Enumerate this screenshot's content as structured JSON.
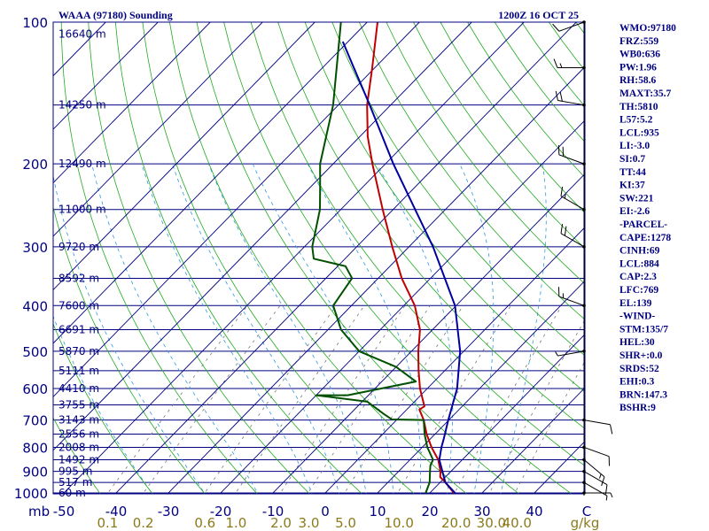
{
  "header": {
    "station": "WAAA (97180) Sounding",
    "time": "1200Z 16 OCT 25"
  },
  "chart_data": {
    "type": "skew-t",
    "title": "WAAA (97180) Sounding",
    "valid_time": "1200Z 16 OCT 25",
    "pressure_axis_label": "mb",
    "pressure_levels": [
      100,
      200,
      300,
      400,
      500,
      600,
      700,
      800,
      900,
      1000
    ],
    "height_levels": [
      {
        "p": 106,
        "label": "16640 m"
      },
      {
        "p": 150,
        "label": "14250 m"
      },
      {
        "p": 200,
        "label": "12490 m"
      },
      {
        "p": 250,
        "label": "11000 m"
      },
      {
        "p": 300,
        "label": "9720 m"
      },
      {
        "p": 350,
        "label": "8592 m"
      },
      {
        "p": 400,
        "label": "7600 m"
      },
      {
        "p": 450,
        "label": "6691 m"
      },
      {
        "p": 500,
        "label": "5870 m"
      },
      {
        "p": 550,
        "label": "5111 m"
      },
      {
        "p": 600,
        "label": "4410 m"
      },
      {
        "p": 650,
        "label": "3755 m"
      },
      {
        "p": 700,
        "label": "3143 m"
      },
      {
        "p": 750,
        "label": "2556 m"
      },
      {
        "p": 800,
        "label": "2008 m"
      },
      {
        "p": 850,
        "label": "1492 m"
      },
      {
        "p": 900,
        "label": "995 m"
      },
      {
        "p": 950,
        "label": "517 m"
      },
      {
        "p": 1000,
        "label": "60 m"
      }
    ],
    "temperature_ticks": [
      "-50",
      "-40",
      "-30",
      "-20",
      "-10",
      "0",
      "10",
      "20",
      "30",
      "40",
      "C"
    ],
    "mixing_ratio_ticks": [
      "0.1",
      "0.2",
      "0.6",
      "1.0",
      "2.0",
      "3.0",
      "5.0",
      "10.0",
      "20.0",
      "30.0",
      "40.0",
      "g/kg"
    ],
    "series": [
      {
        "name": "temperature",
        "color": "#c00000",
        "points": [
          {
            "p": 1008,
            "t": 25.4
          },
          {
            "p": 1000,
            "t": 24.6
          },
          {
            "p": 950,
            "t": 21.0
          },
          {
            "p": 925,
            "t": 19.0
          },
          {
            "p": 900,
            "t": 18.0
          },
          {
            "p": 850,
            "t": 15.4
          },
          {
            "p": 800,
            "t": 11.8
          },
          {
            "p": 750,
            "t": 8.4
          },
          {
            "p": 700,
            "t": 5.2
          },
          {
            "p": 665,
            "t": 2.4
          },
          {
            "p": 655,
            "t": 2.8
          },
          {
            "p": 600,
            "t": -1.4
          },
          {
            "p": 550,
            "t": -5.0
          },
          {
            "p": 500,
            "t": -8.7
          },
          {
            "p": 450,
            "t": -12.4
          },
          {
            "p": 400,
            "t": -17.9
          },
          {
            "p": 350,
            "t": -25.5
          },
          {
            "p": 300,
            "t": -33.2
          },
          {
            "p": 250,
            "t": -42.0
          },
          {
            "p": 200,
            "t": -52.5
          },
          {
            "p": 175,
            "t": -58.5
          },
          {
            "p": 150,
            "t": -64.5
          },
          {
            "p": 125,
            "t": -70.5
          },
          {
            "p": 100,
            "t": -78.0
          }
        ]
      },
      {
        "name": "dewpoint",
        "color": "#005000",
        "points": [
          {
            "p": 1008,
            "t": 19.5
          },
          {
            "p": 1000,
            "t": 19.2
          },
          {
            "p": 950,
            "t": 18.0
          },
          {
            "p": 900,
            "t": 16.0
          },
          {
            "p": 875,
            "t": 15.0
          },
          {
            "p": 850,
            "t": 14.4
          },
          {
            "p": 800,
            "t": 11.0
          },
          {
            "p": 750,
            "t": 8.0
          },
          {
            "p": 700,
            "t": 5.2
          },
          {
            "p": 698,
            "t": -1.0
          },
          {
            "p": 680,
            "t": -3.5
          },
          {
            "p": 640,
            "t": -9.0
          },
          {
            "p": 620,
            "t": -20.0
          },
          {
            "p": 620,
            "t": -14.0
          },
          {
            "p": 580,
            "t": -3.5
          },
          {
            "p": 540,
            "t": -10.0
          },
          {
            "p": 500,
            "t": -20.0
          },
          {
            "p": 450,
            "t": -27.5
          },
          {
            "p": 400,
            "t": -33.5
          },
          {
            "p": 350,
            "t": -35.0
          },
          {
            "p": 330,
            "t": -38.5
          },
          {
            "p": 318,
            "t": -46.0
          },
          {
            "p": 300,
            "t": -48.5
          },
          {
            "p": 250,
            "t": -54.0
          },
          {
            "p": 225,
            "t": -58.0
          },
          {
            "p": 200,
            "t": -62.5
          },
          {
            "p": 150,
            "t": -71.0
          },
          {
            "p": 100,
            "t": -85.0
          }
        ]
      },
      {
        "name": "parcel",
        "color": "#0000a0",
        "points": [
          {
            "p": 1008,
            "t": 25.4
          },
          {
            "p": 950,
            "t": 21.0
          },
          {
            "p": 884,
            "t": 17.5
          },
          {
            "p": 850,
            "t": 15.6
          },
          {
            "p": 800,
            "t": 13.7
          },
          {
            "p": 769,
            "t": 12.6
          },
          {
            "p": 700,
            "t": 9.9
          },
          {
            "p": 600,
            "t": 5.7
          },
          {
            "p": 500,
            "t": -0.7
          },
          {
            "p": 400,
            "t": -10.2
          },
          {
            "p": 300,
            "t": -25.4
          },
          {
            "p": 250,
            "t": -35.8
          },
          {
            "p": 200,
            "t": -48.5
          },
          {
            "p": 150,
            "t": -64.0
          },
          {
            "p": 125,
            "t": -74.0
          },
          {
            "p": 110,
            "t": -81.0
          }
        ]
      }
    ],
    "wind_barbs": [
      {
        "p": 1000,
        "dir": 90,
        "kt": 5
      },
      {
        "p": 950,
        "dir": 120,
        "kt": 5
      },
      {
        "p": 900,
        "dir": 120,
        "kt": 10
      },
      {
        "p": 850,
        "dir": 130,
        "kt": 15
      },
      {
        "p": 800,
        "dir": 110,
        "kt": 10
      },
      {
        "p": 700,
        "dir": 100,
        "kt": 10
      },
      {
        "p": 500,
        "dir": 260,
        "kt": 5
      },
      {
        "p": 400,
        "dir": 290,
        "kt": 15
      },
      {
        "p": 300,
        "dir": 300,
        "kt": 20
      },
      {
        "p": 250,
        "dir": 300,
        "kt": 15
      },
      {
        "p": 200,
        "dir": 290,
        "kt": 20
      },
      {
        "p": 150,
        "dir": 280,
        "kt": 20
      },
      {
        "p": 125,
        "dir": 270,
        "kt": 15
      },
      {
        "p": 100,
        "dir": 250,
        "kt": 10
      }
    ]
  },
  "indices": [
    "WMO:97180",
    "FRZ:559",
    "WB0:636",
    "PW:1.96",
    "RH:58.6",
    "MAXT:35.7",
    "TH:5810",
    "L57:5.2",
    "LCL:935",
    "LI:-3.0",
    "SI:0.7",
    "TT:44",
    "KI:37",
    "SW:221",
    "EI:-2.6",
    "-PARCEL-",
    "CAPE:1278",
    "CINH:69",
    "LCL:884",
    "CAP:2.3",
    "LFC:769",
    "EL:139",
    "-WIND-",
    "STM:135/7",
    "HEL:30",
    "SHR+:0.0",
    "SRDS:52",
    "EHI:0.3",
    "BRN:147.3",
    "BSHR:9"
  ],
  "colors": {
    "frame": "#000080",
    "isotherm": "#000080",
    "dry_adiabat": "#22aa22",
    "moist_adiabat": "#3399dd",
    "mixing_ratio": "#777777",
    "temperature": "#c00000",
    "dewpoint": "#005000",
    "parcel": "#0000a0",
    "mr_label": "#8b7a1c"
  }
}
